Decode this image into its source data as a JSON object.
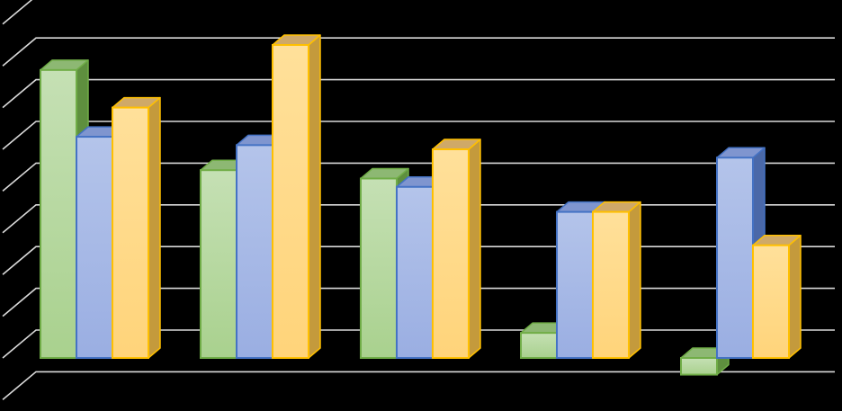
{
  "chart_data": {
    "type": "bar",
    "style": "3d-clustered-column",
    "background": "#000000",
    "gridline_color": "#d9d9d9",
    "grid": true,
    "categories": [
      "",
      "",
      "",
      "",
      ""
    ],
    "ylim": [
      -1,
      7.5
    ],
    "series": [
      {
        "values": [
          6.9,
          4.5,
          4.3,
          0.6,
          -0.4
        ],
        "colors": {
          "light": "#c5e0b4",
          "mid": "#a9d18e",
          "dark": "#70ad47",
          "top": "#8db873",
          "side": "#5e8f3e"
        }
      },
      {
        "values": [
          5.3,
          5.1,
          4.1,
          3.5,
          4.8
        ],
        "colors": {
          "light": "#b4c4ea",
          "mid": "#9aaee2",
          "dark": "#4472c4",
          "top": "#7f95cf",
          "side": "#4a68a8"
        }
      },
      {
        "values": [
          6.0,
          7.5,
          5.0,
          3.5,
          2.7
        ],
        "colors": {
          "light": "#ffe09a",
          "mid": "#ffd47a",
          "dark": "#ffc000",
          "top": "#cfa968",
          "side": "#c49a3c"
        }
      }
    ]
  }
}
